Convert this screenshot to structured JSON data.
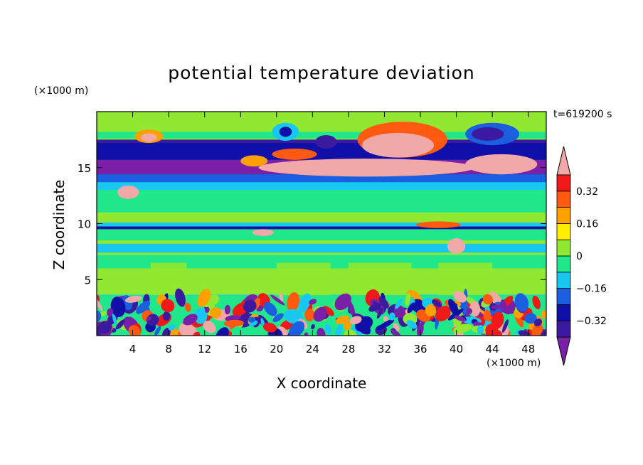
{
  "chart_data": {
    "type": "heatmap",
    "title": "potential temperature deviation",
    "xlabel": "X coordinate",
    "ylabel": "Z coordinate",
    "x_unit": "(×1000 m)",
    "y_unit": "(×1000 m)",
    "time_label": "t=619200 s",
    "xlim": [
      0,
      50
    ],
    "ylim": [
      0,
      20
    ],
    "x_ticks": [
      4,
      8,
      12,
      16,
      20,
      24,
      28,
      32,
      36,
      40,
      44,
      48
    ],
    "y_ticks": [
      5,
      10,
      15
    ],
    "colorbar": {
      "labels": [
        "0.32",
        "0.16",
        "0",
        "−0.16",
        "−0.32"
      ],
      "label_values": [
        0.32,
        0.16,
        0,
        -0.16,
        -0.32
      ],
      "levels": [
        -0.4,
        -0.32,
        -0.24,
        -0.16,
        -0.08,
        0,
        0.08,
        0.16,
        0.24,
        0.32,
        0.4
      ],
      "colors": [
        "#7a20a8",
        "#3b1aa0",
        "#1010a8",
        "#1a5fe0",
        "#18c8f0",
        "#20e88a",
        "#90e830",
        "#ffee00",
        "#ffa000",
        "#ff5a10",
        "#f01818",
        "#f0a8a8"
      ],
      "over_color": "#f0a8a8",
      "under_color": "#7a20a8"
    },
    "regions": [
      {
        "x": [
          0,
          50
        ],
        "z": [
          0,
          3.6
        ],
        "level": "turbulent mixed layer (−0.4 to 0.4)"
      },
      {
        "x": [
          0,
          50
        ],
        "z": [
          3.6,
          9.5
        ],
        "level": "0"
      },
      {
        "x": [
          0,
          50
        ],
        "z": [
          9.5,
          9.7
        ],
        "level": "−0.24"
      },
      {
        "x": [
          0,
          50
        ],
        "z": [
          9.7,
          13.5
        ],
        "level": "0"
      },
      {
        "x": [
          0,
          50
        ],
        "z": [
          13.5,
          14.5
        ],
        "level": "−0.08"
      },
      {
        "x": [
          0,
          50
        ],
        "z": [
          14.5,
          17.5
        ],
        "level": "−0.32 to −0.4"
      },
      {
        "x": [
          0,
          50
        ],
        "z": [
          17.5,
          20
        ],
        "level": "0"
      }
    ]
  }
}
